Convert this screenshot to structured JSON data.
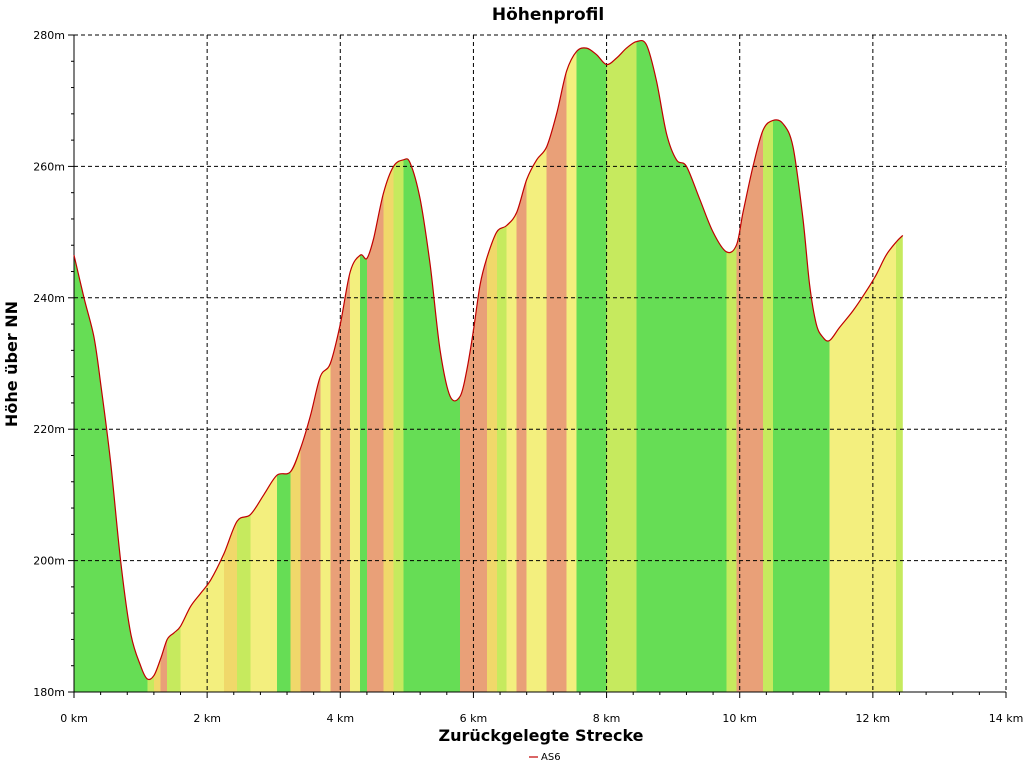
{
  "chart_data": {
    "type": "area",
    "title": "Höhenprofil",
    "xlabel": "Zurückgelegte Strecke",
    "ylabel": "Höhe über NN",
    "xlim": [
      0,
      14
    ],
    "ylim": [
      180,
      280
    ],
    "x_ticks": [
      0,
      2,
      4,
      6,
      8,
      10,
      12,
      14
    ],
    "x_tick_labels": [
      "0 km",
      "2 km",
      "4 km",
      "6 km",
      "8 km",
      "10 km",
      "12 km",
      "14 km"
    ],
    "y_ticks": [
      180,
      200,
      220,
      240,
      260,
      280
    ],
    "y_tick_labels": [
      "180m",
      "200m",
      "220m",
      "240m",
      "260m",
      "280m"
    ],
    "grid": true,
    "legend_position": "bottom-center",
    "series": [
      {
        "name": "AS6",
        "color": "#c00000",
        "x": [
          0,
          0.15,
          0.3,
          0.4,
          0.55,
          0.7,
          0.85,
          1.0,
          1.1,
          1.2,
          1.3,
          1.4,
          1.5,
          1.6,
          1.75,
          1.9,
          2.05,
          2.25,
          2.45,
          2.65,
          2.85,
          3.05,
          3.25,
          3.4,
          3.55,
          3.7,
          3.85,
          4.0,
          4.15,
          4.3,
          4.4,
          4.5,
          4.65,
          4.8,
          4.95,
          5.05,
          5.2,
          5.35,
          5.5,
          5.65,
          5.8,
          5.9,
          6.0,
          6.1,
          6.2,
          6.35,
          6.5,
          6.65,
          6.8,
          6.95,
          7.1,
          7.25,
          7.4,
          7.55,
          7.7,
          7.85,
          8.0,
          8.15,
          8.3,
          8.45,
          8.6,
          8.75,
          8.9,
          9.05,
          9.2,
          9.4,
          9.6,
          9.8,
          9.95,
          10.05,
          10.2,
          10.35,
          10.5,
          10.65,
          10.8,
          10.95,
          11.05,
          11.15,
          11.25,
          11.35,
          11.5,
          11.7,
          11.9,
          12.05,
          12.2,
          12.35,
          12.45
        ],
        "values": [
          246.5,
          240,
          234,
          227,
          215,
          200,
          189,
          184,
          182,
          182.5,
          185,
          188,
          189,
          190,
          193,
          195,
          197,
          201,
          206,
          207,
          210,
          213,
          213.5,
          217,
          222,
          228,
          230,
          236,
          244,
          246.5,
          246,
          249,
          256,
          260,
          261,
          260.5,
          255,
          245,
          232,
          225,
          225,
          229,
          235,
          242,
          246,
          250,
          251,
          253,
          258,
          261,
          263,
          268,
          274.5,
          277.5,
          278,
          277,
          275.5,
          276.5,
          278,
          279,
          278.5,
          273,
          265,
          261,
          260,
          255,
          250,
          247,
          248,
          253,
          260,
          265.5,
          267,
          266.5,
          263,
          252,
          242,
          236,
          234,
          233.5,
          235.5,
          238,
          241,
          243.5,
          246.5,
          248.5,
          249.5
        ]
      }
    ]
  }
}
